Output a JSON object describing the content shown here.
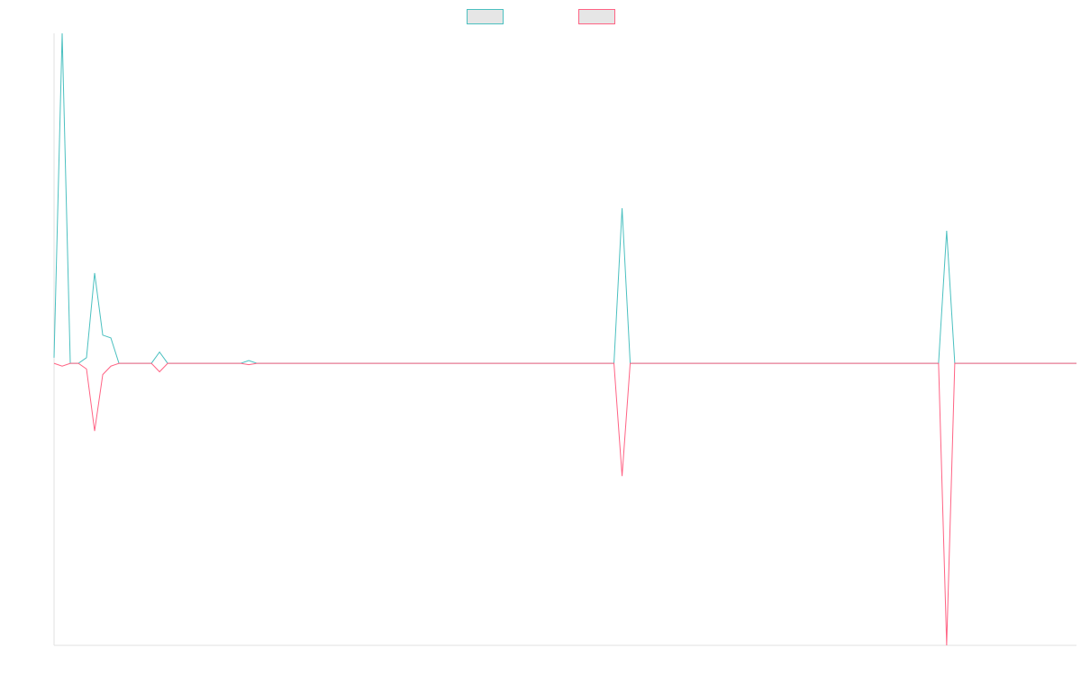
{
  "chart_data": {
    "type": "line",
    "title": "",
    "xlabel": "",
    "ylabel": "",
    "grid": false,
    "legend": {
      "position": "top"
    },
    "ylim": [
      -1.0,
      1.17
    ],
    "series": [
      {
        "name": "",
        "color": "#4bc0c0",
        "fill": "#e6e6e6",
        "values": [
          0.02,
          1.17,
          0.0,
          0.0,
          0.02,
          0.32,
          0.1,
          0.09,
          0.0,
          0.0,
          0.0,
          0.0,
          0.0,
          0.04,
          0.0,
          0.0,
          0.0,
          0.0,
          0.0,
          0.0,
          0.0,
          0.0,
          0.0,
          0.0,
          0.01,
          0.0,
          0.0,
          0.0,
          0.0,
          0.0,
          0.0,
          0.0,
          0.0,
          0.0,
          0.0,
          0.0,
          0.0,
          0.0,
          0.0,
          0.0,
          0.0,
          0.0,
          0.0,
          0.0,
          0.0,
          0.0,
          0.0,
          0.0,
          0.0,
          0.0,
          0.0,
          0.0,
          0.0,
          0.0,
          0.0,
          0.0,
          0.0,
          0.0,
          0.0,
          0.0,
          0.0,
          0.0,
          0.0,
          0.0,
          0.0,
          0.0,
          0.0,
          0.0,
          0.0,
          0.0,
          0.55,
          0.0,
          0.0,
          0.0,
          0.0,
          0.0,
          0.0,
          0.0,
          0.0,
          0.0,
          0.0,
          0.0,
          0.0,
          0.0,
          0.0,
          0.0,
          0.0,
          0.0,
          0.0,
          0.0,
          0.0,
          0.0,
          0.0,
          0.0,
          0.0,
          0.0,
          0.0,
          0.0,
          0.0,
          0.0,
          0.0,
          0.0,
          0.0,
          0.0,
          0.0,
          0.0,
          0.0,
          0.0,
          0.0,
          0.0,
          0.47,
          0.0,
          0.0,
          0.0,
          0.0,
          0.0,
          0.0,
          0.0,
          0.0,
          0.0,
          0.0,
          0.0,
          0.0,
          0.0,
          0.0,
          0.0,
          0.0
        ]
      },
      {
        "name": "",
        "color": "#ff6384",
        "fill": "#e6e6e6",
        "values": [
          0.0,
          -0.01,
          0.0,
          0.0,
          -0.02,
          -0.24,
          -0.04,
          -0.01,
          0.0,
          0.0,
          0.0,
          0.0,
          0.0,
          -0.03,
          0.0,
          0.0,
          0.0,
          0.0,
          0.0,
          0.0,
          0.0,
          0.0,
          0.0,
          0.0,
          -0.005,
          0.0,
          0.0,
          0.0,
          0.0,
          0.0,
          0.0,
          0.0,
          0.0,
          0.0,
          0.0,
          0.0,
          0.0,
          0.0,
          0.0,
          0.0,
          0.0,
          0.0,
          0.0,
          0.0,
          0.0,
          0.0,
          0.0,
          0.0,
          0.0,
          0.0,
          0.0,
          0.0,
          0.0,
          0.0,
          0.0,
          0.0,
          0.0,
          0.0,
          0.0,
          0.0,
          0.0,
          0.0,
          0.0,
          0.0,
          0.0,
          0.0,
          0.0,
          0.0,
          0.0,
          0.0,
          -0.4,
          0.0,
          0.0,
          0.0,
          0.0,
          0.0,
          0.0,
          0.0,
          0.0,
          0.0,
          0.0,
          0.0,
          0.0,
          0.0,
          0.0,
          0.0,
          0.0,
          0.0,
          0.0,
          0.0,
          0.0,
          0.0,
          0.0,
          0.0,
          0.0,
          0.0,
          0.0,
          0.0,
          0.0,
          0.0,
          0.0,
          0.0,
          0.0,
          0.0,
          0.0,
          0.0,
          0.0,
          0.0,
          0.0,
          0.0,
          -1.0,
          0.0,
          0.0,
          0.0,
          0.0,
          0.0,
          0.0,
          0.0,
          0.0,
          0.0,
          0.0,
          0.0,
          0.0,
          0.0,
          0.0,
          0.0,
          0.0
        ]
      }
    ]
  }
}
